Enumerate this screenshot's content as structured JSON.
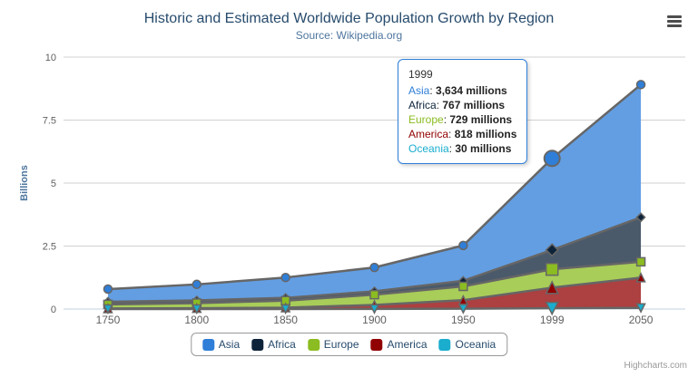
{
  "title": "Historic and Estimated Worldwide Population Growth by Region",
  "subtitle": "Source: Wikipedia.org",
  "credits": "Highcharts.com",
  "export_menu_icon": "hamburger-icon",
  "y_axis": {
    "title": "Billions",
    "ticks": [
      {
        "label": "0",
        "value": 0
      },
      {
        "label": "2.5",
        "value": 2.5
      },
      {
        "label": "5",
        "value": 5
      },
      {
        "label": "7.5",
        "value": 7.5
      },
      {
        "label": "10",
        "value": 10
      }
    ]
  },
  "chart_data": {
    "type": "area",
    "stacking": "normal",
    "title": "Historic and Estimated Worldwide Population Growth by Region",
    "subtitle": "Source: Wikipedia.org",
    "categories": [
      "1750",
      "1800",
      "1850",
      "1900",
      "1950",
      "1999",
      "2050"
    ],
    "unit": "millions",
    "ylabel": "Billions",
    "ylim": [
      0,
      10
    ],
    "grid": true,
    "legend_position": "bottom",
    "line_color": "#666666",
    "fill_opacity": 0.75,
    "axis_line_color": "#c0d0e0",
    "grid_color": "#d0d0d0",
    "series": [
      {
        "name": "Asia",
        "color": "#2f7ed8",
        "marker": "circle",
        "values": [
          502,
          635,
          809,
          947,
          1402,
          3634,
          5268
        ]
      },
      {
        "name": "Africa",
        "color": "#0d233a",
        "marker": "diamond",
        "values": [
          106,
          107,
          111,
          133,
          221,
          767,
          1766
        ]
      },
      {
        "name": "Europe",
        "color": "#8bbc21",
        "marker": "square",
        "values": [
          163,
          203,
          276,
          408,
          547,
          729,
          628
        ]
      },
      {
        "name": "America",
        "color": "#910000",
        "marker": "triangle",
        "values": [
          18,
          31,
          54,
          156,
          339,
          818,
          1201
        ]
      },
      {
        "name": "Oceania",
        "color": "#1aadce",
        "marker": "triangle-down",
        "values": [
          2,
          2,
          2,
          6,
          13,
          30,
          46
        ]
      }
    ]
  },
  "tooltip": {
    "category": "1999",
    "rows": [
      {
        "name": "Asia",
        "value": "3,634 millions"
      },
      {
        "name": "Africa",
        "value": "767 millions"
      },
      {
        "name": "Europe",
        "value": "729 millions"
      },
      {
        "name": "America",
        "value": "818 millions"
      },
      {
        "name": "Oceania",
        "value": "30 millions"
      }
    ]
  }
}
